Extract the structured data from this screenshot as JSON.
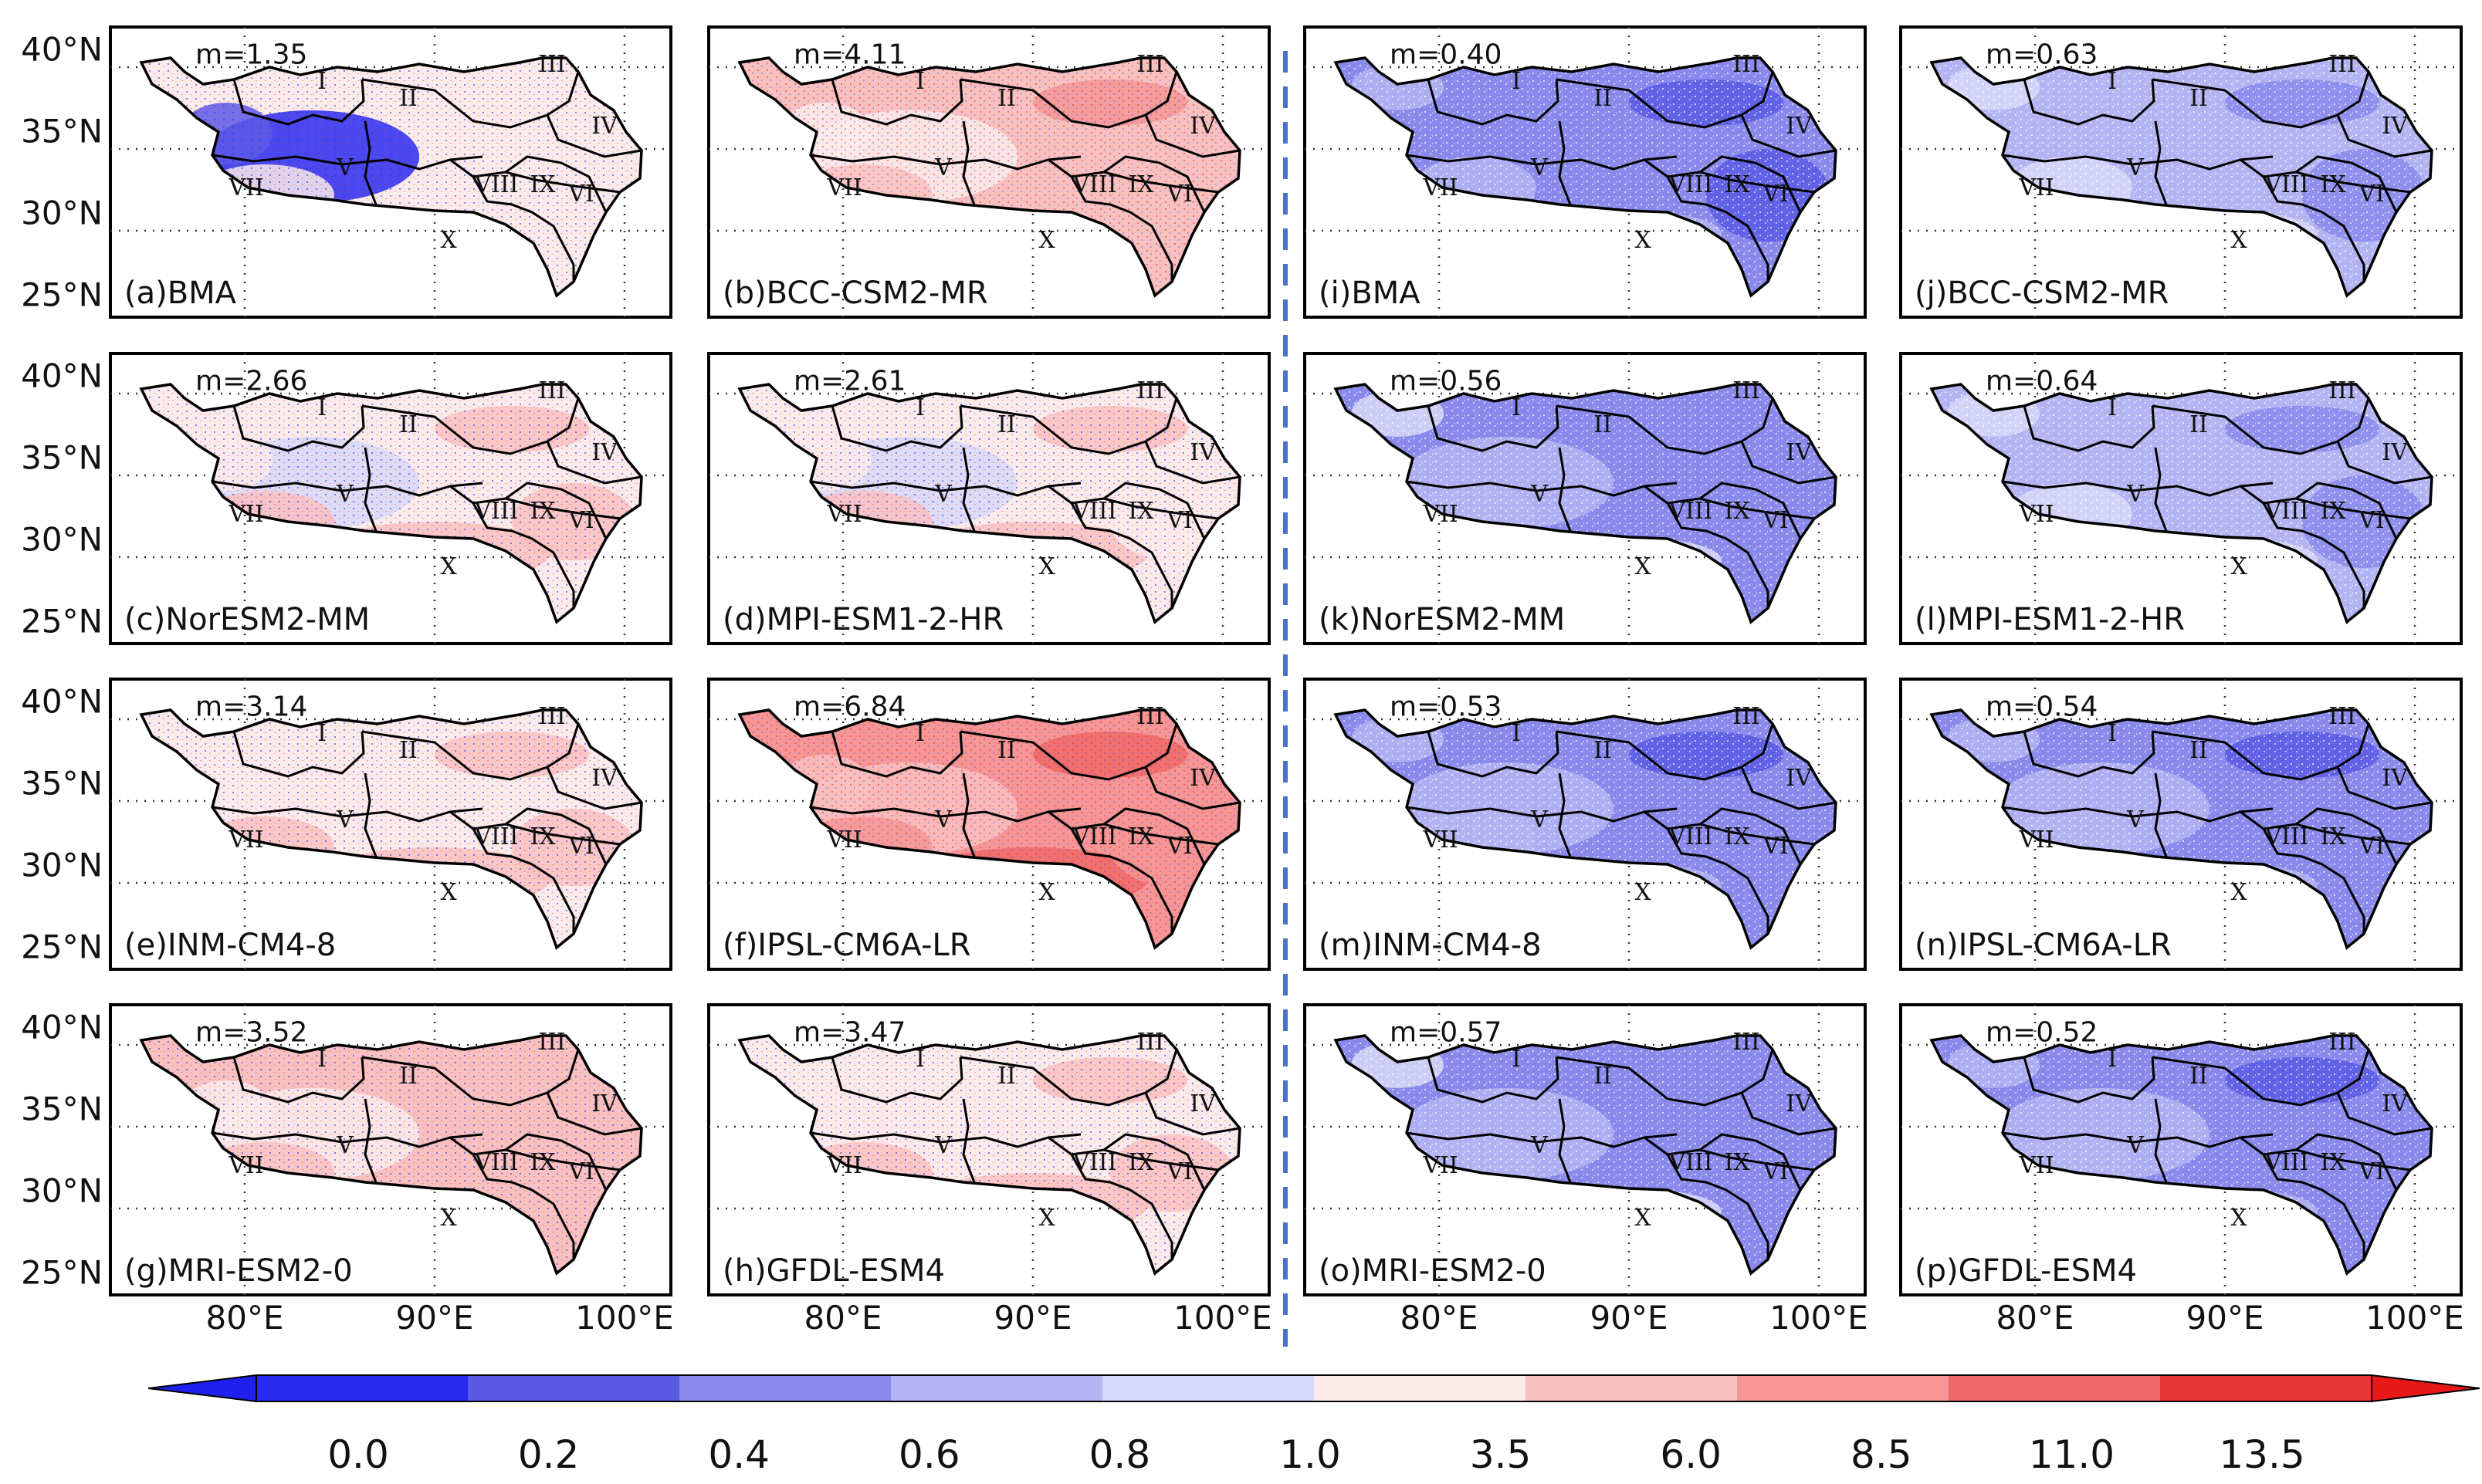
{
  "figure": {
    "y_axis_labels": [
      "40°N",
      "35°N",
      "30°N",
      "25°N"
    ],
    "x_axis_labels": [
      "80°E",
      "90°E",
      "100°E"
    ],
    "region_labels": [
      "I",
      "II",
      "III",
      "IV",
      "V",
      "VI",
      "VII",
      "VIII",
      "IX",
      "X"
    ]
  },
  "panels": [
    {
      "id": "a",
      "label": "(a)BMA",
      "m_text": "m=1.35",
      "m": 1.35,
      "group": "left"
    },
    {
      "id": "b",
      "label": "(b)BCC-CSM2-MR",
      "m_text": "m=4.11",
      "m": 4.11,
      "group": "left"
    },
    {
      "id": "c",
      "label": "(c)NorESM2-MM",
      "m_text": "m=2.66",
      "m": 2.66,
      "group": "left"
    },
    {
      "id": "d",
      "label": "(d)MPI-ESM1-2-HR",
      "m_text": "m=2.61",
      "m": 2.61,
      "group": "left"
    },
    {
      "id": "e",
      "label": "(e)INM-CM4-8",
      "m_text": "m=3.14",
      "m": 3.14,
      "group": "left"
    },
    {
      "id": "f",
      "label": "(f)IPSL-CM6A-LR",
      "m_text": "m=6.84",
      "m": 6.84,
      "group": "left"
    },
    {
      "id": "g",
      "label": "(g)MRI-ESM2-0",
      "m_text": "m=3.52",
      "m": 3.52,
      "group": "left"
    },
    {
      "id": "h",
      "label": "(h)GFDL-ESM4",
      "m_text": "m=3.47",
      "m": 3.47,
      "group": "left"
    },
    {
      "id": "i",
      "label": "(i)BMA",
      "m_text": "m=0.40",
      "m": 0.4,
      "group": "right"
    },
    {
      "id": "j",
      "label": "(j)BCC-CSM2-MR",
      "m_text": "m=0.63",
      "m": 0.63,
      "group": "right"
    },
    {
      "id": "k",
      "label": "(k)NorESM2-MM",
      "m_text": "m=0.56",
      "m": 0.56,
      "group": "right"
    },
    {
      "id": "l",
      "label": "(l)MPI-ESM1-2-HR",
      "m_text": "m=0.64",
      "m": 0.64,
      "group": "right"
    },
    {
      "id": "m",
      "label": "(m)INM-CM4-8",
      "m_text": "m=0.53",
      "m": 0.53,
      "group": "right"
    },
    {
      "id": "n",
      "label": "(n)IPSL-CM6A-LR",
      "m_text": "m=0.54",
      "m": 0.54,
      "group": "right"
    },
    {
      "id": "o",
      "label": "(o)MRI-ESM2-0",
      "m_text": "m=0.57",
      "m": 0.57,
      "group": "right"
    },
    {
      "id": "p",
      "label": "(p)GFDL-ESM4",
      "m_text": "m=0.52",
      "m": 0.52,
      "group": "right"
    }
  ],
  "colorbar": {
    "tick_labels": [
      "0.0",
      "0.2",
      "0.4",
      "0.6",
      "0.8",
      "1.0",
      "3.5",
      "6.0",
      "8.5",
      "11.0",
      "13.5"
    ],
    "colors": [
      "#2b2bf0",
      "#5a5ae6",
      "#8a8aec",
      "#b4b4f3",
      "#d8d8f8",
      "#fbeaea",
      "#f9c0c0",
      "#f59595",
      "#ef6868",
      "#e83535"
    ],
    "extend_low_color": "#1f1ff0",
    "extend_high_color": "#e81818"
  },
  "colors": {
    "divider": "#4a74c9",
    "tile_outline": "#000000",
    "plateau_outline": "#000000"
  }
}
